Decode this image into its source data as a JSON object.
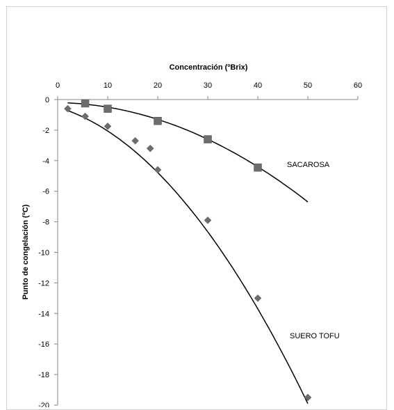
{
  "chart_data": {
    "type": "scatter",
    "title": "",
    "xlabel": "Concentración (ºBrix)",
    "ylabel": "Punto de congelación (ºC)",
    "xlim": [
      0,
      60
    ],
    "ylim": [
      -20,
      0
    ],
    "x_ticks": [
      0,
      10,
      20,
      30,
      40,
      50,
      60
    ],
    "y_ticks": [
      0,
      -2,
      -4,
      -6,
      -8,
      -10,
      -12,
      -14,
      -16,
      -18,
      -20
    ],
    "x_axis_position": "top",
    "grid": false,
    "legend": "none",
    "series": [
      {
        "name": "SACAROSA",
        "marker": "square",
        "color": "#6d6d6d",
        "points": [
          [
            5.5,
            -0.25
          ],
          [
            10,
            -0.6
          ],
          [
            20,
            -1.4
          ],
          [
            30,
            -2.6
          ],
          [
            40,
            -4.45
          ]
        ],
        "trendline": {
          "x_range": [
            2,
            50
          ],
          "coeffs": [
            -0.0025,
            -0.005,
            -0.2
          ]
        }
      },
      {
        "name": "SUERO TOFU",
        "marker": "diamond",
        "color": "#6d6d6d",
        "points": [
          [
            2,
            -0.6
          ],
          [
            5.5,
            -1.1
          ],
          [
            10,
            -1.75
          ],
          [
            15.5,
            -2.7
          ],
          [
            18.5,
            -3.2
          ],
          [
            20,
            -4.6
          ],
          [
            30,
            -7.9
          ],
          [
            40,
            -13.0
          ],
          [
            50,
            -19.5
          ]
        ],
        "trendline": {
          "x_range": [
            2,
            50
          ],
          "coeffs": [
            -0.0058,
            -0.098,
            -0.5
          ]
        }
      }
    ]
  }
}
